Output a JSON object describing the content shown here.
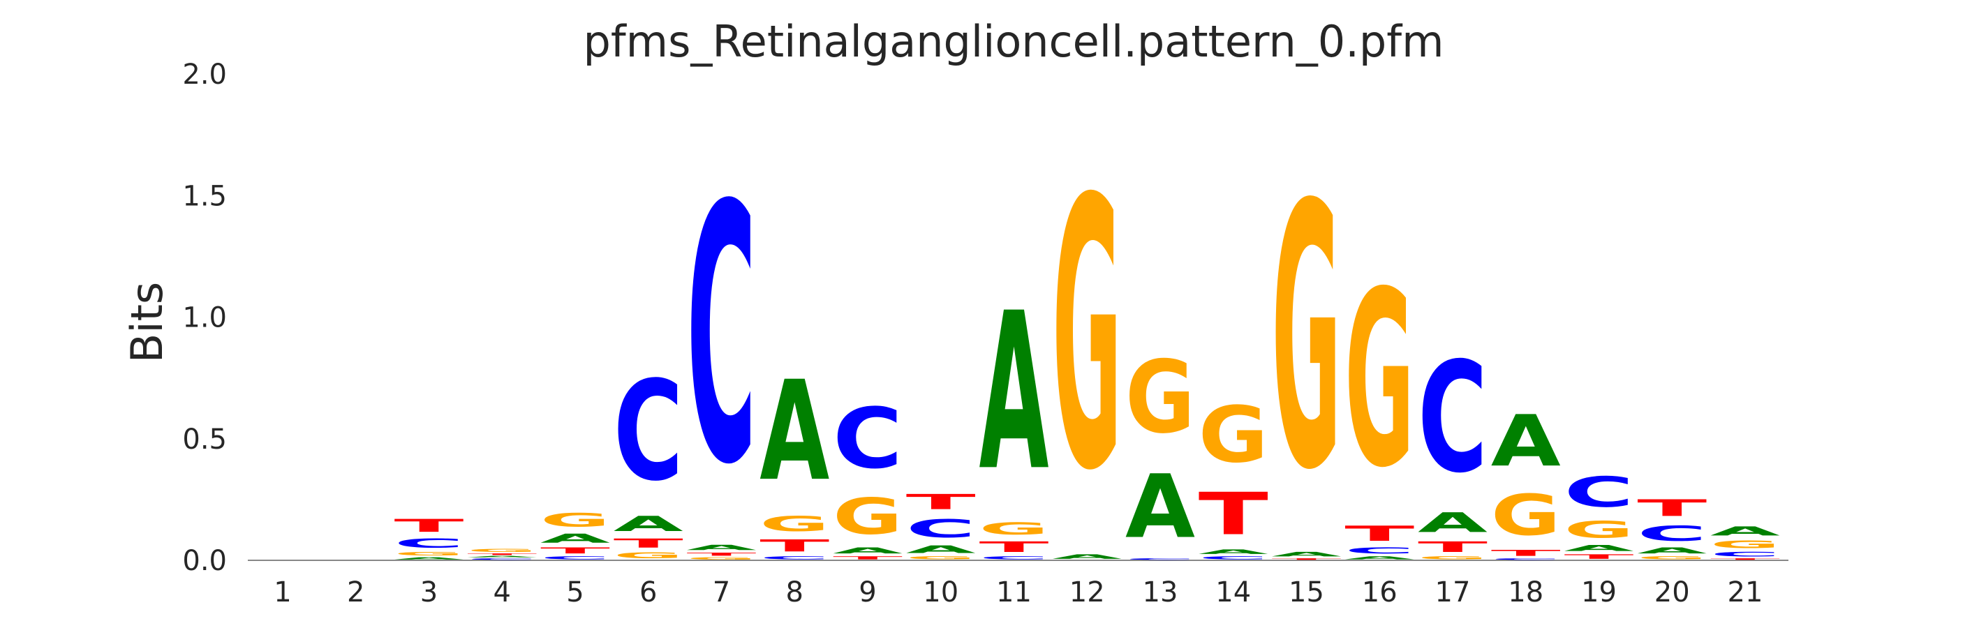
{
  "chart_data": {
    "type": "sequence-logo",
    "title": "pfms_Retinalganglioncell.pattern_0.pfm",
    "xlabel": "",
    "ylabel": "Bits",
    "ylim": [
      0,
      2.0
    ],
    "yticks": [
      "0.0",
      "0.5",
      "1.0",
      "1.5",
      "2.0"
    ],
    "grid": false,
    "colors": {
      "A": "#008000",
      "C": "#0000ff",
      "G": "#ffa500",
      "T": "#ff0000"
    },
    "positions": [
      {
        "label": "1",
        "stack": []
      },
      {
        "label": "2",
        "stack": []
      },
      {
        "label": "3",
        "stack": [
          {
            "base": "A",
            "bits": 0.015
          },
          {
            "base": "G",
            "bits": 0.025
          },
          {
            "base": "C",
            "bits": 0.06
          },
          {
            "base": "T",
            "bits": 0.085
          }
        ]
      },
      {
        "label": "4",
        "stack": [
          {
            "base": "C",
            "bits": 0.01
          },
          {
            "base": "A",
            "bits": 0.01
          },
          {
            "base": "T",
            "bits": 0.01
          },
          {
            "base": "G",
            "bits": 0.02
          }
        ]
      },
      {
        "label": "5",
        "stack": [
          {
            "base": "C",
            "bits": 0.02
          },
          {
            "base": "T",
            "bits": 0.04
          },
          {
            "base": "A",
            "bits": 0.06
          },
          {
            "base": "G",
            "bits": 0.09
          }
        ]
      },
      {
        "label": "6",
        "stack": [
          {
            "base": "G",
            "bits": 0.04
          },
          {
            "base": "T",
            "bits": 0.06
          },
          {
            "base": "A",
            "bits": 0.1
          },
          {
            "base": "C",
            "bits": 0.66
          }
        ]
      },
      {
        "label": "7",
        "stack": [
          {
            "base": "G",
            "bits": 0.015
          },
          {
            "base": "T",
            "bits": 0.02
          },
          {
            "base": "A",
            "bits": 0.035
          },
          {
            "base": "C",
            "bits": 1.7
          }
        ]
      },
      {
        "label": "8",
        "stack": [
          {
            "base": "C",
            "bits": 0.02
          },
          {
            "base": "T",
            "bits": 0.08
          },
          {
            "base": "G",
            "bits": 0.1
          },
          {
            "base": "A",
            "bits": 0.66
          }
        ]
      },
      {
        "label": "9",
        "stack": [
          {
            "base": "T",
            "bits": 0.02
          },
          {
            "base": "A",
            "bits": 0.04
          },
          {
            "base": "G",
            "bits": 0.24
          },
          {
            "base": "C",
            "bits": 0.4
          }
        ]
      },
      {
        "label": "10",
        "stack": [
          {
            "base": "G",
            "bits": 0.02
          },
          {
            "base": "A",
            "bits": 0.05
          },
          {
            "base": "C",
            "bits": 0.12
          },
          {
            "base": "T",
            "bits": 0.1
          }
        ]
      },
      {
        "label": "11",
        "stack": [
          {
            "base": "C",
            "bits": 0.02
          },
          {
            "base": "T",
            "bits": 0.07
          },
          {
            "base": "G",
            "bits": 0.08
          },
          {
            "base": "A",
            "bits": 1.04
          }
        ]
      },
      {
        "label": "12",
        "stack": [
          {
            "base": "A",
            "bits": 0.03
          },
          {
            "base": "G",
            "bits": 1.78
          }
        ]
      },
      {
        "label": "13",
        "stack": [
          {
            "base": "C",
            "bits": 0.01
          },
          {
            "base": "A",
            "bits": 0.42
          },
          {
            "base": "G",
            "bits": 0.48
          }
        ]
      },
      {
        "label": "14",
        "stack": [
          {
            "base": "C",
            "bits": 0.02
          },
          {
            "base": "A",
            "bits": 0.03
          },
          {
            "base": "T",
            "bits": 0.28
          },
          {
            "base": "G",
            "bits": 0.37
          }
        ]
      },
      {
        "label": "15",
        "stack": [
          {
            "base": "T",
            "bits": 0.01
          },
          {
            "base": "A",
            "bits": 0.03
          },
          {
            "base": "G",
            "bits": 1.74
          }
        ]
      },
      {
        "label": "16",
        "stack": [
          {
            "base": "A",
            "bits": 0.02
          },
          {
            "base": "C",
            "bits": 0.04
          },
          {
            "base": "T",
            "bits": 0.1
          },
          {
            "base": "G",
            "bits": 1.16
          }
        ]
      },
      {
        "label": "17",
        "stack": [
          {
            "base": "G",
            "bits": 0.02
          },
          {
            "base": "T",
            "bits": 0.07
          },
          {
            "base": "A",
            "bits": 0.13
          },
          {
            "base": "C",
            "bits": 0.73
          }
        ]
      },
      {
        "label": "18",
        "stack": [
          {
            "base": "C",
            "bits": 0.01
          },
          {
            "base": "T",
            "bits": 0.04
          },
          {
            "base": "G",
            "bits": 0.27
          },
          {
            "base": "A",
            "bits": 0.34
          }
        ]
      },
      {
        "label": "19",
        "stack": [
          {
            "base": "T",
            "bits": 0.03
          },
          {
            "base": "A",
            "bits": 0.04
          },
          {
            "base": "G",
            "bits": 0.11
          },
          {
            "base": "C",
            "bits": 0.2
          }
        ]
      },
      {
        "label": "20",
        "stack": [
          {
            "base": "G",
            "bits": 0.02
          },
          {
            "base": "A",
            "bits": 0.04
          },
          {
            "base": "C",
            "bits": 0.1
          },
          {
            "base": "T",
            "bits": 0.11
          }
        ]
      },
      {
        "label": "21",
        "stack": [
          {
            "base": "T",
            "bits": 0.01
          },
          {
            "base": "C",
            "bits": 0.03
          },
          {
            "base": "G",
            "bits": 0.05
          },
          {
            "base": "A",
            "bits": 0.06
          }
        ]
      }
    ]
  }
}
